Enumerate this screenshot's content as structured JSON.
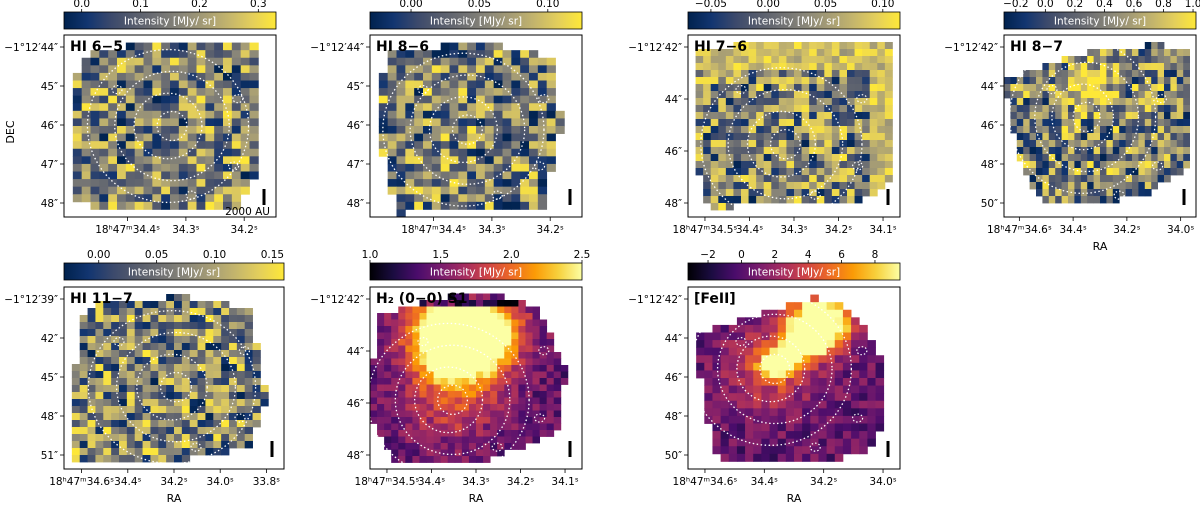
{
  "colors": {
    "cividis": [
      "#00224e",
      "#123570",
      "#3b496c",
      "#575d6d",
      "#707173",
      "#8a8779",
      "#a69d75",
      "#c4b56c",
      "#e4cf5b",
      "#fee838"
    ],
    "inferno": [
      "#000004",
      "#1b0c41",
      "#4a0c6b",
      "#781c6d",
      "#a52c60",
      "#cf4446",
      "#ed6925",
      "#fb9b06",
      "#f7d13d",
      "#fcffa4"
    ],
    "contour": "#ffffff"
  },
  "shared": {
    "xlabel": "RA",
    "ylabel": "DEC",
    "colorbar_label": "Intensity [MJy/ sr]",
    "scalebar_label": "2000 AU"
  },
  "chart_data": [
    {
      "type": "heatmap",
      "title": "HI 6−5",
      "colormap": "cividis",
      "colorbar": {
        "ticks": [
          "0.0",
          "0.1",
          "0.2",
          "0.3"
        ],
        "tick_values": [
          0,
          0.1,
          0.2,
          0.3
        ],
        "range": [
          -0.03,
          0.33
        ]
      },
      "yticks": [
        "−1°12′44″",
        "45″",
        "46″",
        "47″",
        "48″"
      ],
      "xticks": [
        "18ʰ47ᵐ34.4ˢ",
        "34.3ˢ",
        "34.2ˢ"
      ],
      "xlabel": "",
      "ylabel": "DEC",
      "scalebar": true,
      "scalebar_text": true
    },
    {
      "type": "heatmap",
      "title": "HI 8−6",
      "colormap": "cividis",
      "colorbar": {
        "ticks": [
          "0.00",
          "0.05",
          "0.10"
        ],
        "tick_values": [
          0,
          0.05,
          0.1
        ],
        "range": [
          -0.03,
          0.125
        ]
      },
      "yticks": [
        "−1°12′44″",
        "45″",
        "46″",
        "47″",
        "48″"
      ],
      "xticks": [
        "18ʰ47ᵐ34.4ˢ",
        "34.3ˢ",
        "34.2ˢ"
      ],
      "xlabel": "",
      "ylabel": "",
      "scalebar": true,
      "scalebar_text": false
    },
    {
      "type": "heatmap",
      "title": "HI 7−6",
      "colormap": "cividis",
      "colorbar": {
        "ticks": [
          "−0.05",
          "0.00",
          "0.05",
          "0.10"
        ],
        "tick_values": [
          -0.05,
          0,
          0.05,
          0.1
        ],
        "range": [
          -0.07,
          0.115
        ]
      },
      "yticks": [
        "−1°12′42″",
        "44″",
        "46″",
        "48″"
      ],
      "xticks": [
        "18ʰ47ᵐ34.5ˢ",
        "34.4ˢ",
        "34.3ˢ",
        "34.2ˢ",
        "34.1ˢ"
      ],
      "xlabel": "",
      "ylabel": "",
      "scalebar": true,
      "scalebar_text": false
    },
    {
      "type": "heatmap",
      "title": "HI 8−7",
      "colormap": "cividis",
      "colorbar": {
        "ticks": [
          "−0.2",
          "0.0",
          "0.2",
          "0.4",
          "0.6",
          "0.8",
          "1.0"
        ],
        "tick_values": [
          -0.2,
          0,
          0.2,
          0.4,
          0.6,
          0.8,
          1.0
        ],
        "range": [
          -0.28,
          1.02
        ]
      },
      "yticks": [
        "−1°12′42″",
        "44″",
        "46″",
        "48″",
        "50″"
      ],
      "xticks": [
        "18ʰ47ᵐ34.6ˢ",
        "34.4ˢ",
        "34.2ˢ",
        "34.0ˢ"
      ],
      "xlabel": "RA",
      "ylabel": "",
      "scalebar": true,
      "scalebar_text": false
    },
    {
      "type": "heatmap",
      "title": "HI 11−7",
      "colormap": "cividis",
      "colorbar": {
        "ticks": [
          "0.00",
          "0.05",
          "0.10",
          "0.15"
        ],
        "tick_values": [
          0,
          0.05,
          0.1,
          0.15
        ],
        "range": [
          -0.03,
          0.16
        ]
      },
      "yticks": [
        "−1°12′39″",
        "42″",
        "45″",
        "48″",
        "51″"
      ],
      "xticks": [
        "18ʰ47ᵐ34.6ˢ",
        "34.4ˢ",
        "34.2ˢ",
        "34.0ˢ",
        "33.8ˢ"
      ],
      "xlabel": "RA",
      "ylabel": "",
      "scalebar": true,
      "scalebar_text": false
    },
    {
      "type": "heatmap",
      "title": "H₂ (0−0) S1",
      "colormap": "inferno",
      "colorbar": {
        "ticks": [
          "1.0",
          "1.5",
          "2.0",
          "2.5"
        ],
        "tick_values": [
          1.0,
          1.5,
          2.0,
          2.5
        ],
        "range": [
          1.0,
          2.5
        ]
      },
      "yticks": [
        "−1°12′42″",
        "44″",
        "46″",
        "48″"
      ],
      "xticks": [
        "18ʰ47ᵐ34.5ˢ",
        "34.4ˢ",
        "34.3ˢ",
        "34.2ˢ",
        "34.1ˢ"
      ],
      "xlabel": "RA",
      "ylabel": "",
      "scalebar": true,
      "scalebar_text": false
    },
    {
      "type": "heatmap",
      "title": "[FeII]",
      "colormap": "inferno",
      "colorbar": {
        "ticks": [
          "−2",
          "0",
          "2",
          "4",
          "6",
          "8"
        ],
        "tick_values": [
          -2,
          0,
          2,
          4,
          6,
          8
        ],
        "range": [
          -3.2,
          9.5
        ]
      },
      "yticks": [
        "−1°12′42″",
        "44″",
        "46″",
        "48″",
        "50″"
      ],
      "xticks": [
        "18ʰ47ᵐ34.6ˢ",
        "34.4ˢ",
        "34.2ˢ",
        "34.0ˢ"
      ],
      "xlabel": "RA",
      "ylabel": "",
      "scalebar": true,
      "scalebar_text": false
    }
  ]
}
